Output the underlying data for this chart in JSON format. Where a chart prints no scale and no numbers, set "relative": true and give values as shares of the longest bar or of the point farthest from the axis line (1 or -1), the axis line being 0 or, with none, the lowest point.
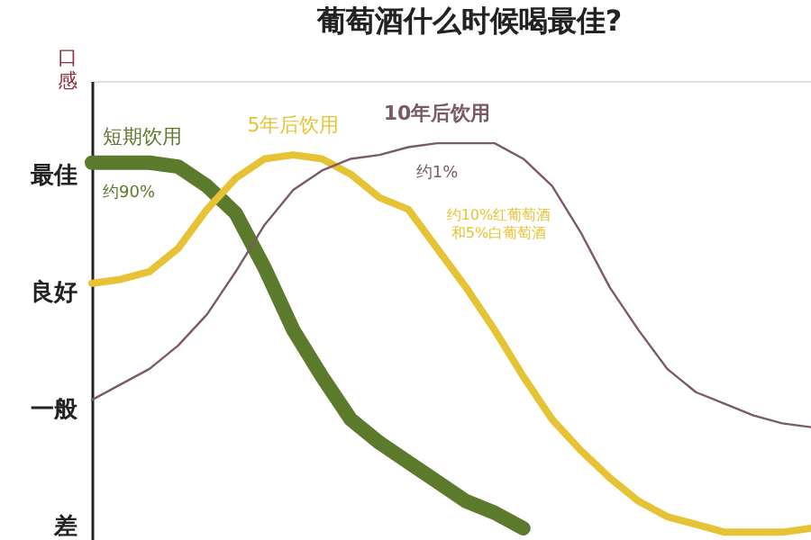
{
  "chart_data": {
    "type": "line",
    "title": "葡萄酒什么时候喝最佳?",
    "ylabel": "口感",
    "relative": true,
    "categories": [
      null,
      null,
      null,
      null,
      null,
      null,
      null,
      null,
      null,
      null,
      null,
      null,
      null,
      null,
      null,
      null,
      null,
      null,
      null,
      null,
      null,
      null,
      null,
      null,
      null,
      null
    ],
    "series": [
      {
        "name": "短期饮用",
        "color": "#5b7a2c",
        "values": [
          0.95,
          0.95,
          0.95,
          0.94,
          0.89,
          0.82,
          0.68,
          0.52,
          0.4,
          0.29,
          0.23,
          0.18,
          0.13,
          0.08,
          0.05,
          0.01,
          null,
          null,
          null,
          null,
          null,
          null,
          null,
          null,
          null,
          null
        ]
      },
      {
        "name": "5年后饮用",
        "color": "#e6c334",
        "values": [
          0.64,
          0.65,
          0.67,
          0.73,
          0.83,
          0.91,
          0.96,
          0.97,
          0.96,
          0.92,
          0.86,
          0.83,
          0.73,
          0.63,
          0.52,
          0.4,
          0.29,
          0.21,
          0.14,
          0.08,
          0.04,
          0.02,
          0.0,
          0.0,
          0.0,
          0.01
        ]
      },
      {
        "name": "10年后饮用",
        "color": "#7a5a64",
        "values": [
          0.34,
          0.38,
          0.42,
          0.48,
          0.56,
          0.67,
          0.79,
          0.88,
          0.93,
          0.96,
          0.97,
          0.99,
          1.0,
          1.0,
          1.0,
          0.96,
          0.89,
          0.77,
          0.63,
          0.52,
          0.42,
          0.36,
          0.33,
          0.3,
          0.28,
          0.27
        ]
      }
    ],
    "annotations": [
      "约90%",
      "约10%红葡萄酒和5%白葡萄酒",
      "约1%",
      "最佳",
      "良好",
      "一般",
      "差"
    ],
    "grid": false,
    "legend": false,
    "marker": "none",
    "line_style": "solid"
  }
}
